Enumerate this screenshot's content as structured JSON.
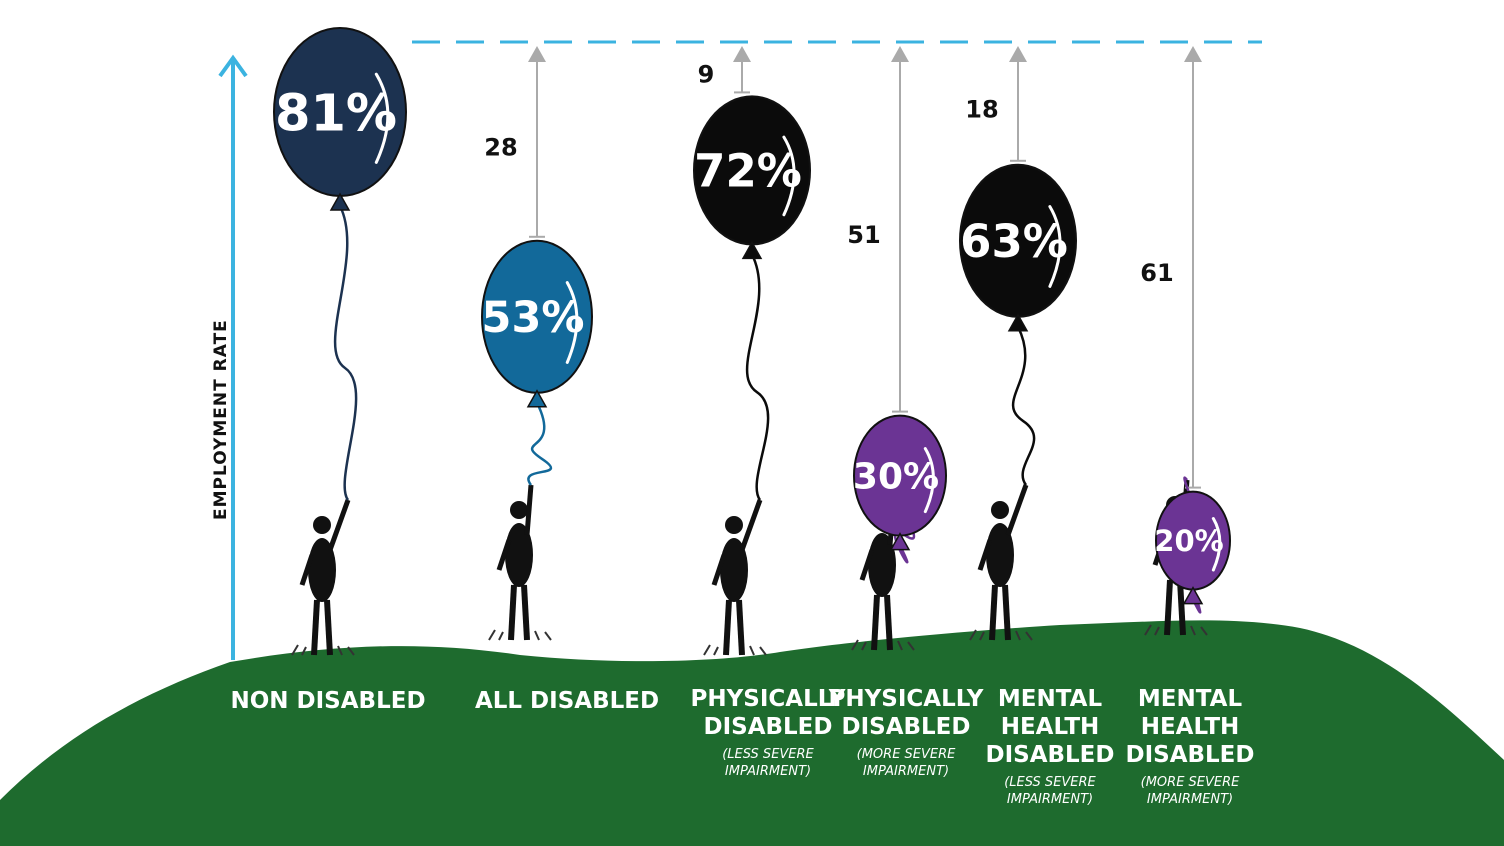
{
  "chart_data": {
    "type": "bar",
    "ylabel": "EMPLOYMENT RATE",
    "unit": "%",
    "ylim": [
      0,
      100
    ],
    "reference_line": "dashed",
    "categories": [
      {
        "label_lines": [
          "NON DISABLED"
        ],
        "sub_lines": [],
        "value": 81,
        "value_label": "81%",
        "gap": null
      },
      {
        "label_lines": [
          "ALL DISABLED"
        ],
        "sub_lines": [],
        "value": 53,
        "value_label": "53%",
        "gap": 28
      },
      {
        "label_lines": [
          "PHYSICALLY",
          "DISABLED"
        ],
        "sub_lines": [
          "(LESS SEVERE",
          "IMPAIRMENT)"
        ],
        "value": 72,
        "value_label": "72%",
        "gap": 9
      },
      {
        "label_lines": [
          "PHYSICALLY",
          "DISABLED"
        ],
        "sub_lines": [
          "(MORE SEVERE",
          "IMPAIRMENT)"
        ],
        "value": 30,
        "value_label": "30%",
        "gap": 51
      },
      {
        "label_lines": [
          "MENTAL",
          "HEALTH",
          "DISABLED"
        ],
        "sub_lines": [
          "(LESS SEVERE",
          "IMPAIRMENT)"
        ],
        "value": 63,
        "value_label": "63%",
        "gap": 18
      },
      {
        "label_lines": [
          "MENTAL",
          "HEALTH",
          "DISABLED"
        ],
        "sub_lines": [
          "(MORE SEVERE",
          "IMPAIRMENT)"
        ],
        "value": 20,
        "value_label": "20%",
        "gap": 61
      }
    ],
    "colors": {
      "non_disabled": "#1c3250",
      "all_disabled": "#12699a",
      "less_severe": "#0b0b0b",
      "more_severe": "#6b3494",
      "ground": "#1e6b2e",
      "axis": "#3bb3e0",
      "gap_arrow": "#aaaaaa",
      "figure": "#111111"
    }
  }
}
